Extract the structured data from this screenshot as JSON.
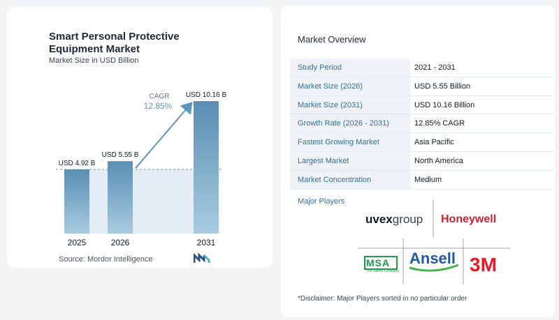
{
  "chart_data": {
    "type": "bar",
    "title": "Smart Personal Protective Equipment Market",
    "subtitle": "Market Size in USD Billion",
    "categories": [
      "2025",
      "2026",
      "2031"
    ],
    "values": [
      4.92,
      5.55,
      10.16
    ],
    "data_labels": [
      "USD 4.92 B",
      "USD 5.55 B",
      "USD 10.16 B"
    ],
    "cagr_label": "CAGR",
    "cagr_value": "12.85%",
    "ylim": [
      0,
      10.16
    ],
    "grid": false,
    "colors": {
      "bar_top": "#5a8fb3",
      "bar_bottom": "#a8cbe0",
      "shade": "#e4edf5",
      "arrow": "#5b95bd",
      "baseline": "#5b95bd"
    }
  },
  "source": "Source:  Mordor Intelligence",
  "overview": {
    "title": "Market Overview",
    "rows": [
      {
        "label": "Study Period",
        "value": "2021 - 2031"
      },
      {
        "label": "Market Size (2026)",
        "value": "USD 5.55 Billion"
      },
      {
        "label": "Market Size (2031)",
        "value": "USD 10.16 Billion"
      },
      {
        "label": "Growth Rate (2026 - 2031)",
        "value": "12.85% CAGR"
      },
      {
        "label": "Fastest Growing Market",
        "value": "Asia Pacific"
      },
      {
        "label": "Largest Market",
        "value": "North America"
      },
      {
        "label": "Market Concentration",
        "value": "Medium"
      }
    ],
    "players_title": "Major Players",
    "players": {
      "uvex": {
        "brand": "uvex",
        "suffix": "group"
      },
      "honeywell": "Honeywell",
      "msa": {
        "brand": "MSA",
        "tagline": "The Safety Company"
      },
      "ansell": "Ansell",
      "mmm": "3M"
    },
    "disclaimer": "*Disclaimer: Major Players sorted in no particular order"
  }
}
